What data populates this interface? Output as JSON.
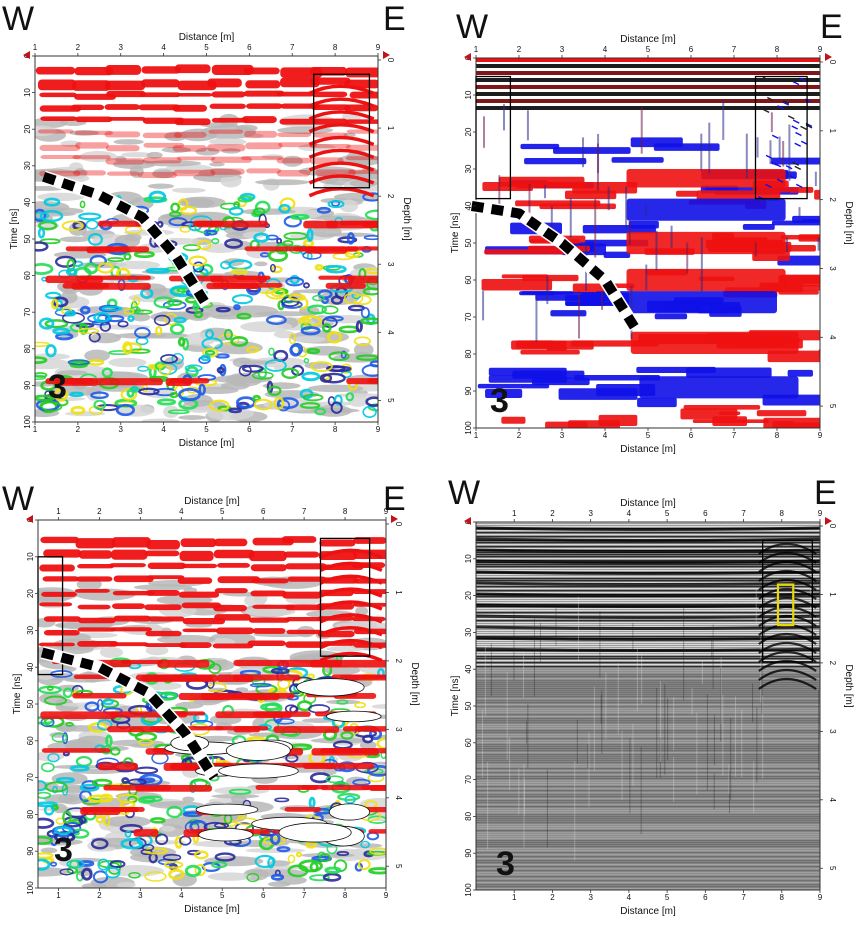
{
  "panels": [
    {
      "west": "W",
      "east": "E",
      "profile": "3",
      "xlabel": "Distance [m]",
      "ylabel": "Time [ns]",
      "ylabel2": "Depth [m]",
      "palette": "color",
      "x_ticks": [
        "1",
        "2",
        "3",
        "4",
        "5",
        "6",
        "7",
        "8",
        "9"
      ],
      "y_ticks": [
        "0",
        "10",
        "20",
        "30",
        "40",
        "50",
        "60",
        "70",
        "80",
        "90",
        "100"
      ],
      "depth_ticks": [
        "0",
        "1",
        "2",
        "3",
        "4",
        "5"
      ]
    },
    {
      "west": "W",
      "east": "E",
      "profile": "3",
      "xlabel": "Distance [m]",
      "ylabel": "Time [ns]",
      "ylabel2": "Depth [m]",
      "palette": "redblue",
      "x_ticks": [
        "1",
        "2",
        "3",
        "4",
        "5",
        "6",
        "7",
        "8",
        "9"
      ],
      "y_ticks": [
        "0",
        "10",
        "20",
        "30",
        "40",
        "50",
        "60",
        "70",
        "80",
        "90",
        "100"
      ],
      "depth_ticks": [
        "0",
        "1",
        "2",
        "3",
        "4",
        "5"
      ]
    },
    {
      "west": "W",
      "east": "E",
      "profile": "3",
      "xlabel": "Distance [m]",
      "ylabel": "Time [ns]",
      "ylabel2": "Depth [m]",
      "palette": "color",
      "x_ticks": [
        "1",
        "2",
        "3",
        "4",
        "5",
        "6",
        "7",
        "8",
        "9"
      ],
      "y_ticks": [
        "0",
        "10",
        "20",
        "30",
        "40",
        "50",
        "60",
        "70",
        "80",
        "90",
        "100"
      ],
      "depth_ticks": [
        "0",
        "1",
        "2",
        "3",
        "4",
        "5"
      ]
    },
    {
      "west": "W",
      "east": "E",
      "profile": "3",
      "xlabel": "Distance [m]",
      "ylabel": "Time [ns]",
      "ylabel2": "Depth [m]",
      "palette": "gray",
      "x_ticks": [
        "1",
        "2",
        "3",
        "4",
        "5",
        "6",
        "7",
        "8",
        "9"
      ],
      "y_ticks": [
        "0",
        "10",
        "20",
        "30",
        "40",
        "50",
        "60",
        "70",
        "80",
        "90",
        "100"
      ],
      "depth_ticks": [
        "0",
        "1",
        "2",
        "3",
        "4",
        "5"
      ]
    }
  ],
  "chart_data": [
    {
      "type": "heatmap",
      "xlabel": "Distance [m]",
      "ylabel": "Time [ns]",
      "ylabel2": "Depth [m]",
      "xlim": [
        1,
        9
      ],
      "ylim": [
        0,
        100
      ],
      "depth_lim": [
        0,
        5
      ],
      "dashed_line": {
        "x": [
          1.2,
          2.5,
          3.5,
          4.3,
          5.0
        ],
        "y": [
          33,
          38,
          44,
          55,
          68
        ]
      },
      "boxes": [
        {
          "x": [
            7.5,
            8.8
          ],
          "y": [
            5,
            36
          ],
          "color": "#000000"
        }
      ]
    },
    {
      "type": "heatmap",
      "xlabel": "Distance [m]",
      "ylabel": "Time [ns]",
      "ylabel2": "Depth [m]",
      "xlim": [
        1,
        9
      ],
      "ylim": [
        0,
        100
      ],
      "depth_lim": [
        0,
        5
      ],
      "dashed_line": {
        "x": [
          0.9,
          2.0,
          3.0,
          4.0,
          4.7
        ],
        "y": [
          40,
          42,
          50,
          60,
          73
        ]
      },
      "boxes": [
        {
          "x": [
            1.0,
            1.8
          ],
          "y": [
            5,
            38
          ],
          "color": "#000000"
        },
        {
          "x": [
            7.5,
            8.7
          ],
          "y": [
            5,
            38
          ],
          "color": "#000000"
        }
      ]
    },
    {
      "type": "heatmap",
      "xlabel": "Distance [m]",
      "ylabel": "Time [ns]",
      "ylabel2": "Depth [m]",
      "xlim": [
        0.5,
        9
      ],
      "ylim": [
        0,
        100
      ],
      "depth_lim": [
        0,
        5
      ],
      "dashed_line": {
        "x": [
          0.6,
          2.0,
          3.2,
          4.1,
          4.8
        ],
        "y": [
          36,
          40,
          47,
          58,
          70
        ]
      },
      "boxes": [
        {
          "x": [
            0.5,
            1.1
          ],
          "y": [
            10,
            42
          ],
          "color": "#000000"
        },
        {
          "x": [
            7.4,
            8.6
          ],
          "y": [
            5,
            37
          ],
          "color": "#000000"
        }
      ]
    },
    {
      "type": "heatmap",
      "xlabel": "Distance [m]",
      "ylabel": "Time [ns]",
      "ylabel2": "Depth [m]",
      "xlim": [
        0,
        9
      ],
      "ylim": [
        0,
        100
      ],
      "depth_lim": [
        0,
        5
      ],
      "boxes": [
        {
          "x": [
            7.5,
            8.8
          ],
          "y": [
            5,
            38
          ],
          "color": "#000000"
        },
        {
          "x": [
            7.9,
            8.3
          ],
          "y": [
            17,
            28
          ],
          "color": "#e8d800"
        }
      ]
    }
  ]
}
